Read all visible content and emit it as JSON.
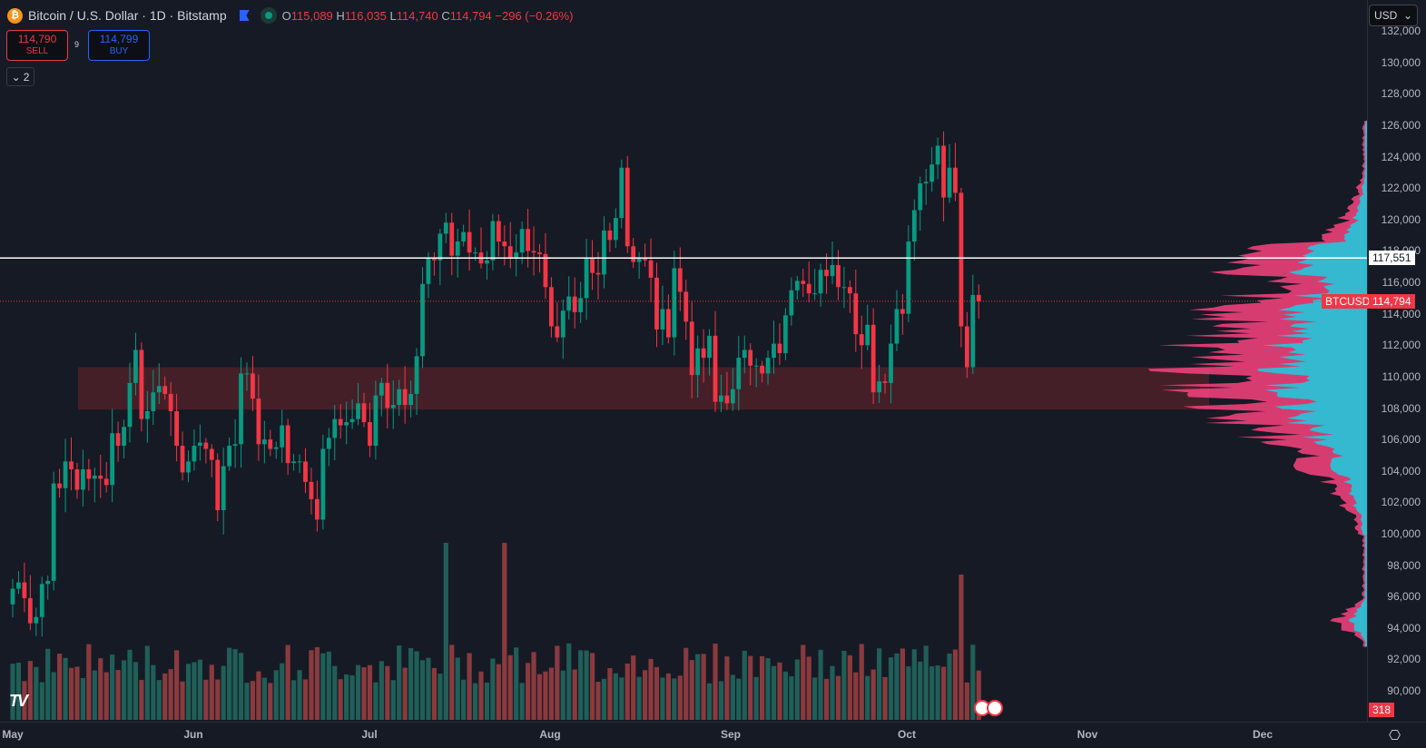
{
  "header": {
    "symbol": "Bitcoin / U.S. Dollar · 1D · Bitstamp",
    "open_label": "O",
    "open": "115,089",
    "high_label": "H",
    "high": "116,035",
    "low_label": "L",
    "low": "114,740",
    "close_label": "C",
    "close": "114,794",
    "change": "−296 (−0.26%)"
  },
  "trade": {
    "sell_price": "114,790",
    "sell_label": "SELL",
    "buy_price": "114,799",
    "buy_label": "BUY",
    "spread": "9"
  },
  "indicators_toggle": {
    "count": "2"
  },
  "currency": "USD",
  "price_axis": [
    "132,000",
    "130,000",
    "128,000",
    "126,000",
    "124,000",
    "122,000",
    "120,000",
    "118,000",
    "116,000",
    "114,000",
    "112,000",
    "110,000",
    "108,000",
    "106,000",
    "104,000",
    "102,000",
    "100,000",
    "98,000",
    "96,000",
    "94,000",
    "92,000",
    "90,000"
  ],
  "labels": {
    "hline": "117,551",
    "symbol_tag": "BTCUSD",
    "last_price": "114,794",
    "volume": "318"
  },
  "time_axis": [
    "May",
    "Jun",
    "Jul",
    "Aug",
    "Sep",
    "Oct",
    "Nov",
    "Dec"
  ],
  "colors": {
    "up": "#089981",
    "down": "#f23645",
    "zone": "#4a2029",
    "profile_up": "#22c6dc",
    "profile_down": "#ec407a"
  },
  "chart_data": {
    "type": "candlestick",
    "start": "May 1",
    "closes_k": [
      96.5,
      96.9,
      95.9,
      94.3,
      94.7,
      96.8,
      97.0,
      103.2,
      102.9,
      104.6,
      104.1,
      102.8,
      104.1,
      103.5,
      103.7,
      103.5,
      103.1,
      106.4,
      105.6,
      106.8,
      109.6,
      111.7,
      107.3,
      107.8,
      109.0,
      109.4,
      108.9,
      107.8,
      105.6,
      103.9,
      104.6,
      105.6,
      105.8,
      105.4,
      104.7,
      101.5,
      104.3,
      105.6,
      105.7,
      110.2,
      110.2,
      108.6,
      105.7,
      106.0,
      105.4,
      105.5,
      106.9,
      104.5,
      104.6,
      104.6,
      103.3,
      102.2,
      100.9,
      105.4,
      106.1,
      107.3,
      106.9,
      107.1,
      107.3,
      108.3,
      107.1,
      105.6,
      108.8,
      109.6,
      108.0,
      108.2,
      109.2,
      108.2,
      108.9,
      111.3,
      115.9,
      117.5,
      117.4,
      119.1,
      119.8,
      117.7,
      118.6,
      119.2,
      117.9,
      117.9,
      117.2,
      117.4,
      119.9,
      118.6,
      118.3,
      117.6,
      117.9,
      119.4,
      118.0,
      117.9,
      117.8,
      115.7,
      113.2,
      112.5,
      114.2,
      115.1,
      114.1,
      115.0,
      117.5,
      116.6,
      116.5,
      119.3,
      118.7,
      120.1,
      123.3,
      118.3,
      117.3,
      117.5,
      117.4,
      116.3,
      113.0,
      114.3,
      112.5,
      116.9,
      115.4,
      113.5,
      110.1,
      111.8,
      111.2,
      112.6,
      108.4,
      108.8,
      108.3,
      109.2,
      111.2,
      111.7,
      110.7,
      110.7,
      110.2,
      111.2,
      112.1,
      111.5,
      113.9,
      115.5,
      116.1,
      115.9,
      115.3,
      115.3,
      116.8,
      116.4,
      117.1,
      115.7,
      115.7,
      115.3,
      112.7,
      112.0,
      113.3,
      109.0,
      109.7,
      109.6,
      112.1,
      114.3,
      114.0,
      118.6,
      120.6,
      122.3,
      122.4,
      123.5,
      124.7,
      121.4,
      123.3,
      121.7,
      113.2,
      110.6,
      115.2,
      114.8
    ],
    "volume_spike_days": [
      74,
      84,
      162
    ],
    "zone_k": [
      107.9,
      110.6
    ],
    "hline_k": 117.551,
    "last_k": 114.794
  }
}
